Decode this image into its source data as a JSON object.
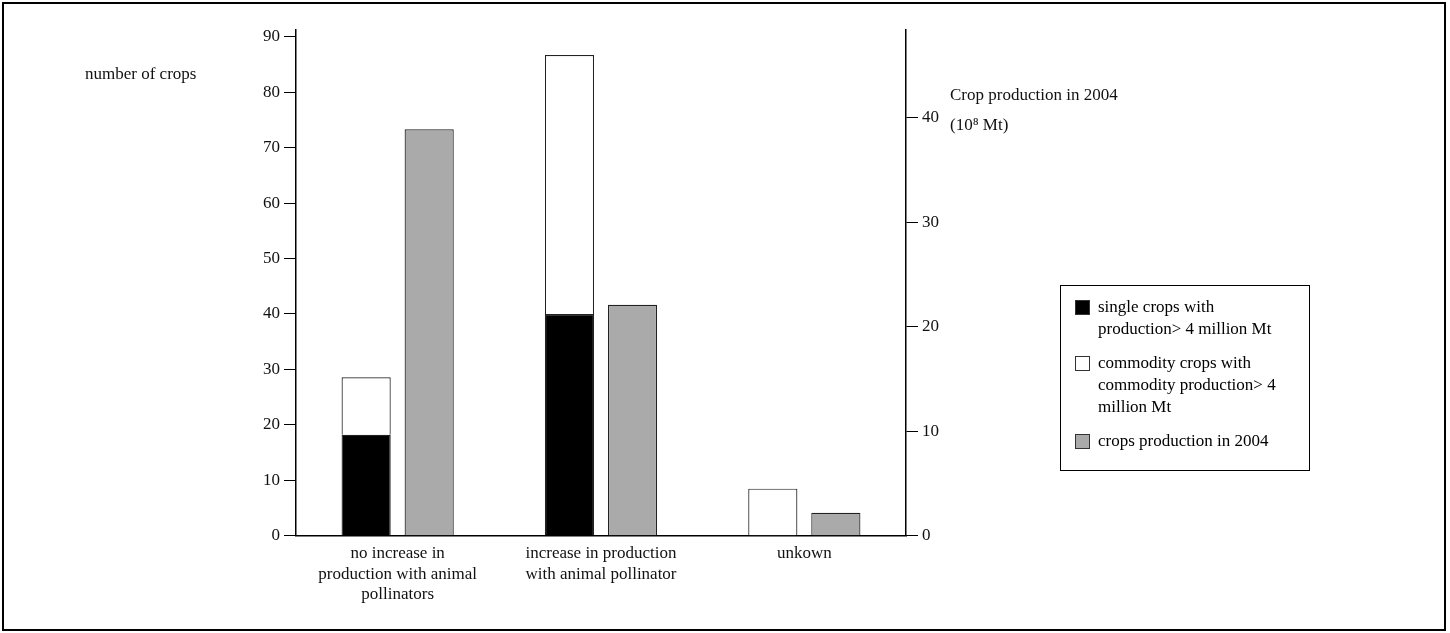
{
  "chart_data": {
    "type": "bar",
    "ylabel": "number of crops",
    "y2label": "Crop production in 2004 (10⁸ Mt)",
    "categories": [
      "no increase in production with animal pollinators",
      "increase in production with animal pollinator",
      "unkown"
    ],
    "series": [
      {
        "name": "single crops with production> 4 million Mt",
        "color": "#000000",
        "values": [
          18.2,
          40,
          0
        ]
      },
      {
        "name": "commodity crops with commodity production> 4 million Mt",
        "color": "#ffffff",
        "values": [
          10.4,
          46.7,
          8.5
        ]
      },
      {
        "name": "crops production in 2004",
        "color": "#aaaaaa",
        "values": [
          38.9,
          22.1,
          2.2
        ],
        "axis": "y2"
      }
    ],
    "stacked": true,
    "ylim": [
      0,
      91.2
    ],
    "yticks": [
      0,
      10,
      20,
      30,
      40,
      50,
      60,
      70,
      80,
      90
    ],
    "y2lim": [
      0,
      48.4
    ],
    "y2ticks": [
      0,
      10,
      20,
      30,
      40
    ],
    "grid": false,
    "legend": "right"
  }
}
